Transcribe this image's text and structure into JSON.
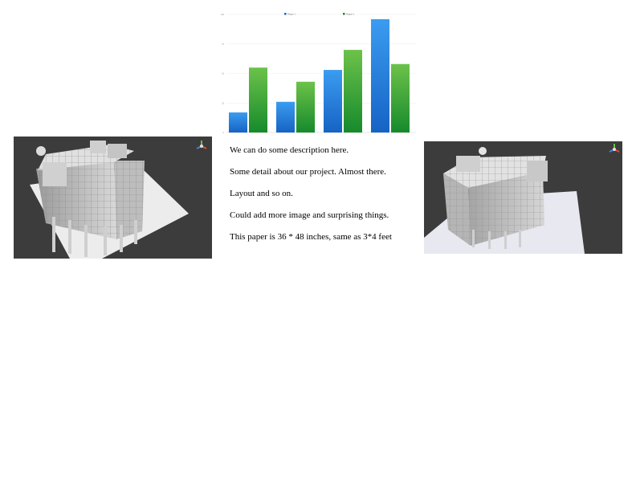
{
  "colors": {
    "series1_top": "#3b9cf0",
    "series1_bottom": "#1663c4",
    "series2_top": "#6cc24a",
    "series2_bottom": "#168a2c",
    "viewport_bg": "#3c3c3c"
  },
  "images": {
    "left": {
      "icon": "3d-building-render"
    },
    "right": {
      "icon": "3d-building-render"
    }
  },
  "chart_data": {
    "type": "bar",
    "title": "",
    "xlabel": "",
    "ylabel": "",
    "categories": [
      "",
      "",
      "",
      ""
    ],
    "series": [
      {
        "name": "Region 1",
        "values": [
          17,
          26,
          53,
          96
        ]
      },
      {
        "name": "Region 2",
        "values": [
          55,
          43,
          70,
          58
        ]
      }
    ],
    "ylim": [
      0,
      100
    ],
    "yticks": [
      0,
      25,
      50,
      75,
      100
    ],
    "grid": true,
    "legend": "top-center"
  },
  "description": {
    "lines": [
      "We can do some description here.",
      "Some detail about our project. Almost there.",
      "Layout and so on.",
      "Could add more image and surprising things.",
      "This paper is 36 * 48 inches, same as 3*4 feet"
    ]
  }
}
